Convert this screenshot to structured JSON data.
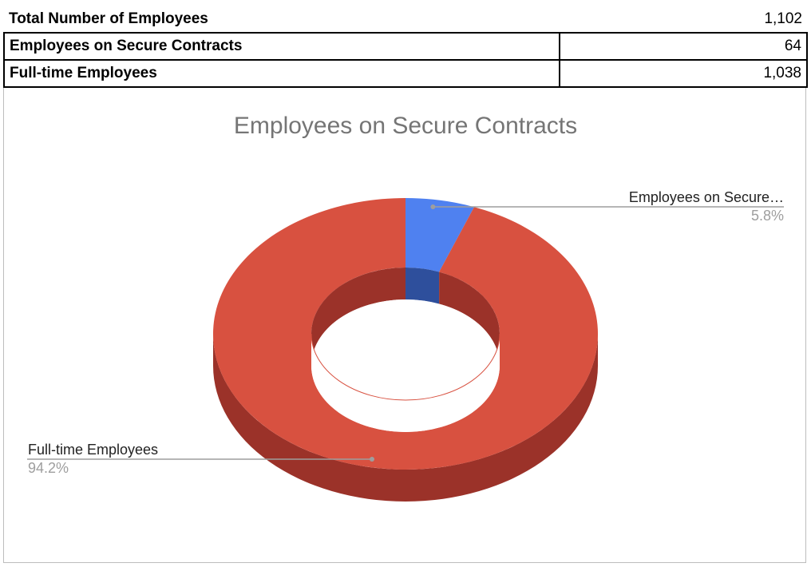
{
  "summary": {
    "rows": [
      {
        "label": "Total Number of Employees",
        "value": "1,102"
      },
      {
        "label": "Employees on Secure Contracts",
        "value": "64"
      },
      {
        "label": "Full-time Employees",
        "value": "1,038"
      }
    ]
  },
  "chart_data": {
    "type": "pie",
    "style": "3d-donut",
    "title": "Employees on Secure Contracts",
    "slices": [
      {
        "name": "Employees on Secure Contracts",
        "display_label": "Employees on Secure…",
        "value": 64,
        "percent_label": "5.8%",
        "color": "#4f81f0"
      },
      {
        "name": "Full-time Employees",
        "display_label": "Full-time Employees",
        "value": 1038,
        "percent_label": "94.2%",
        "color": "#d85140"
      }
    ],
    "colors": {
      "side_red": "#9b3229",
      "side_blue": "#2e4f9c",
      "title": "#757575",
      "leader": "#9e9e9e"
    }
  }
}
